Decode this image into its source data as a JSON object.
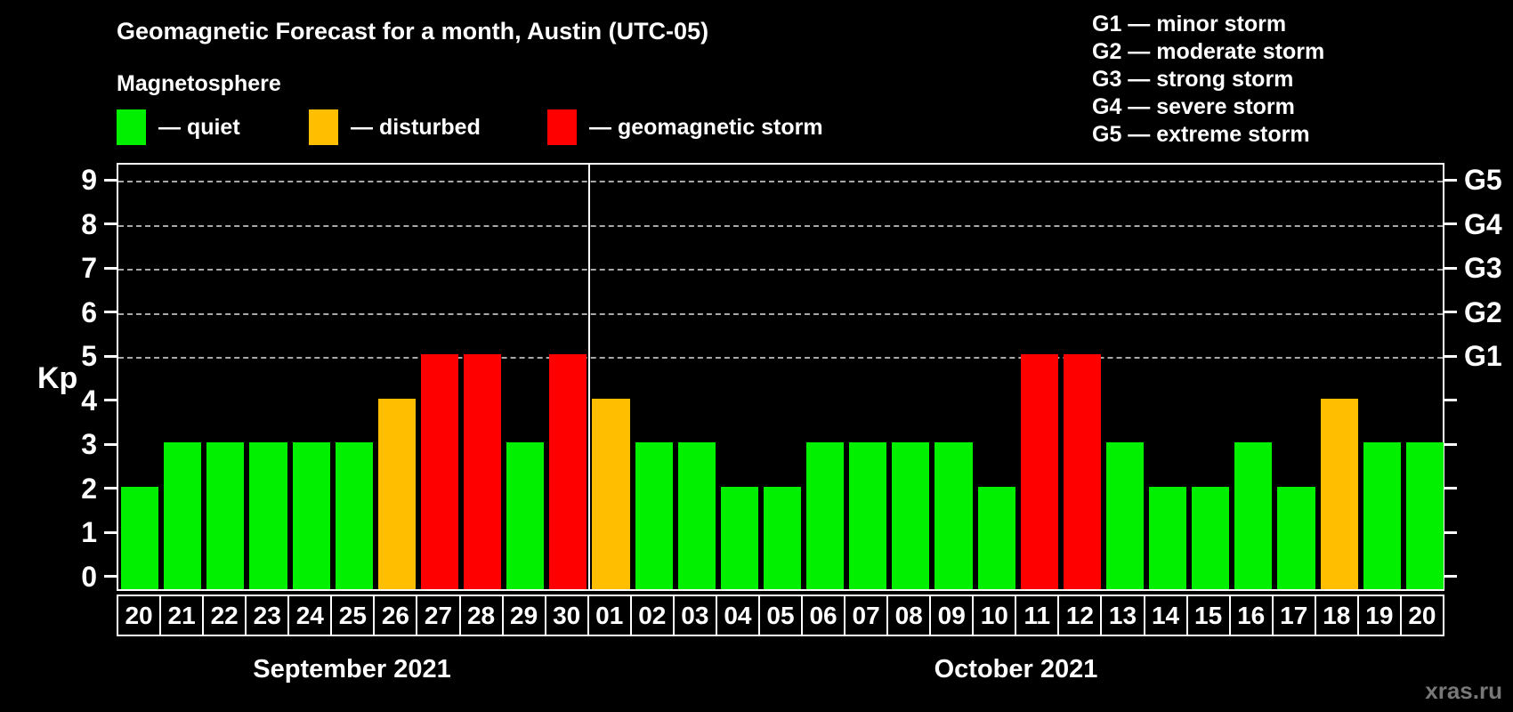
{
  "header": {
    "title": "Geomagnetic Forecast for a month, Austin (UTC-05)",
    "subtitle": "Magnetosphere"
  },
  "legend": {
    "quiet": "— quiet",
    "disturbed": "— disturbed",
    "storm": "— geomagnetic storm"
  },
  "g_legend": {
    "g1": "G1 — minor storm",
    "g2": "G2 — moderate storm",
    "g3": "G3 — strong storm",
    "g4": "G4 — severe storm",
    "g5": "G5 — extreme storm"
  },
  "months": {
    "september": "September 2021",
    "october": "October 2021"
  },
  "watermark": "xras.ru",
  "colors": {
    "quiet": "#00F000",
    "disturbed": "#FFBF00",
    "storm": "#FF0000",
    "grid": "#A8A8A8",
    "axis": "#FFFFFF",
    "background": "#000000",
    "watermark": "#787878"
  },
  "chart_data": {
    "type": "bar",
    "title": "Geomagnetic Forecast for a month, Austin (UTC-05)",
    "xlabel": "",
    "ylabel": "Kp",
    "ylim": [
      0,
      9
    ],
    "y_ticks": [
      9,
      8,
      7,
      6,
      5,
      4,
      3,
      2,
      1,
      0
    ],
    "grid": "dashed horizontal lines at Kp 5-9 only",
    "right_axis_labels": [
      {
        "text": "G5",
        "kp": 9
      },
      {
        "text": "G4",
        "kp": 8
      },
      {
        "text": "G3",
        "kp": 7
      },
      {
        "text": "G2",
        "kp": 6
      },
      {
        "text": "G1",
        "kp": 5
      }
    ],
    "month_split_index": 11,
    "days": [
      {
        "month": "September 2021",
        "date": "20",
        "kp": 2,
        "status": "quiet"
      },
      {
        "month": "September 2021",
        "date": "21",
        "kp": 3,
        "status": "quiet"
      },
      {
        "month": "September 2021",
        "date": "22",
        "kp": 3,
        "status": "quiet"
      },
      {
        "month": "September 2021",
        "date": "23",
        "kp": 3,
        "status": "quiet"
      },
      {
        "month": "September 2021",
        "date": "24",
        "kp": 3,
        "status": "quiet"
      },
      {
        "month": "September 2021",
        "date": "25",
        "kp": 3,
        "status": "quiet"
      },
      {
        "month": "September 2021",
        "date": "26",
        "kp": 4,
        "status": "disturbed"
      },
      {
        "month": "September 2021",
        "date": "27",
        "kp": 5,
        "status": "storm"
      },
      {
        "month": "September 2021",
        "date": "28",
        "kp": 5,
        "status": "storm"
      },
      {
        "month": "September 2021",
        "date": "29",
        "kp": 3,
        "status": "quiet"
      },
      {
        "month": "September 2021",
        "date": "30",
        "kp": 5,
        "status": "storm"
      },
      {
        "month": "October 2021",
        "date": "01",
        "kp": 4,
        "status": "disturbed"
      },
      {
        "month": "October 2021",
        "date": "02",
        "kp": 3,
        "status": "quiet"
      },
      {
        "month": "October 2021",
        "date": "03",
        "kp": 3,
        "status": "quiet"
      },
      {
        "month": "October 2021",
        "date": "04",
        "kp": 2,
        "status": "quiet"
      },
      {
        "month": "October 2021",
        "date": "05",
        "kp": 2,
        "status": "quiet"
      },
      {
        "month": "October 2021",
        "date": "06",
        "kp": 3,
        "status": "quiet"
      },
      {
        "month": "October 2021",
        "date": "07",
        "kp": 3,
        "status": "quiet"
      },
      {
        "month": "October 2021",
        "date": "08",
        "kp": 3,
        "status": "quiet"
      },
      {
        "month": "October 2021",
        "date": "09",
        "kp": 3,
        "status": "quiet"
      },
      {
        "month": "October 2021",
        "date": "10",
        "kp": 2,
        "status": "quiet"
      },
      {
        "month": "October 2021",
        "date": "11",
        "kp": 5,
        "status": "storm"
      },
      {
        "month": "October 2021",
        "date": "12",
        "kp": 5,
        "status": "storm"
      },
      {
        "month": "October 2021",
        "date": "13",
        "kp": 3,
        "status": "quiet"
      },
      {
        "month": "October 2021",
        "date": "14",
        "kp": 2,
        "status": "quiet"
      },
      {
        "month": "October 2021",
        "date": "15",
        "kp": 2,
        "status": "quiet"
      },
      {
        "month": "October 2021",
        "date": "16",
        "kp": 3,
        "status": "quiet"
      },
      {
        "month": "October 2021",
        "date": "17",
        "kp": 2,
        "status": "quiet"
      },
      {
        "month": "October 2021",
        "date": "18",
        "kp": 4,
        "status": "disturbed"
      },
      {
        "month": "October 2021",
        "date": "19",
        "kp": 3,
        "status": "quiet"
      },
      {
        "month": "October 2021",
        "date": "20",
        "kp": 3,
        "status": "quiet"
      }
    ]
  }
}
